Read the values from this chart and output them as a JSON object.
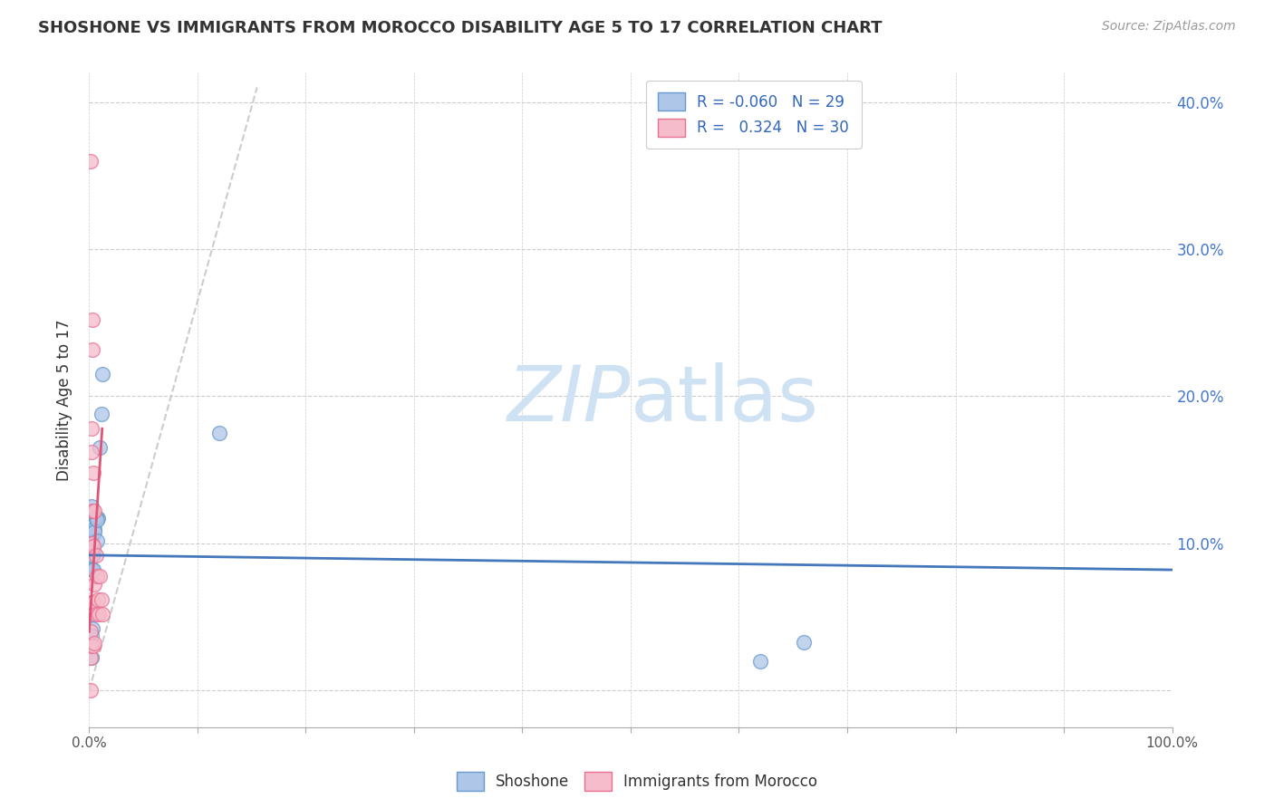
{
  "title": "SHOSHONE VS IMMIGRANTS FROM MOROCCO DISABILITY AGE 5 TO 17 CORRELATION CHART",
  "source": "Source: ZipAtlas.com",
  "ylabel": "Disability Age 5 to 17",
  "background_color": "#ffffff",
  "legend_r_blue": "-0.060",
  "legend_n_blue": "29",
  "legend_r_pink": "0.324",
  "legend_n_pink": "30",
  "xlim": [
    0,
    1.0
  ],
  "ylim": [
    -0.025,
    0.42
  ],
  "yticks": [
    0.0,
    0.1,
    0.2,
    0.3,
    0.4
  ],
  "ytick_labels_right": [
    "",
    "10.0%",
    "20.0%",
    "30.0%",
    "40.0%"
  ],
  "blue_scatter_x": [
    0.002,
    0.004,
    0.003,
    0.002,
    0.004,
    0.005,
    0.006,
    0.005,
    0.007,
    0.008,
    0.01,
    0.006,
    0.007,
    0.003,
    0.002,
    0.012,
    0.011,
    0.12,
    0.003,
    0.002,
    0.002,
    0.003,
    0.003,
    0.002,
    0.003,
    0.62,
    0.66,
    0.004,
    0.003
  ],
  "blue_scatter_y": [
    0.125,
    0.115,
    0.105,
    0.1,
    0.095,
    0.11,
    0.117,
    0.108,
    0.102,
    0.117,
    0.165,
    0.118,
    0.116,
    0.082,
    0.052,
    0.215,
    0.188,
    0.175,
    0.042,
    0.022,
    0.037,
    0.082,
    0.092,
    0.092,
    0.092,
    0.02,
    0.033,
    0.082,
    0.092
  ],
  "pink_scatter_x": [
    0.001,
    0.001,
    0.001,
    0.001,
    0.001,
    0.001,
    0.002,
    0.002,
    0.002,
    0.002,
    0.002,
    0.003,
    0.003,
    0.003,
    0.003,
    0.004,
    0.004,
    0.004,
    0.004,
    0.005,
    0.005,
    0.005,
    0.006,
    0.006,
    0.007,
    0.008,
    0.009,
    0.01,
    0.011,
    0.012
  ],
  "pink_scatter_y": [
    0.36,
    0.0,
    0.055,
    0.04,
    0.03,
    0.022,
    0.178,
    0.162,
    0.1,
    0.06,
    0.03,
    0.252,
    0.232,
    0.122,
    0.06,
    0.148,
    0.098,
    0.06,
    0.03,
    0.122,
    0.072,
    0.032,
    0.092,
    0.052,
    0.078,
    0.062,
    0.052,
    0.078,
    0.062,
    0.052
  ],
  "blue_color": "#aec6e8",
  "blue_edge_color": "#6699cc",
  "pink_color": "#f5bccb",
  "pink_edge_color": "#e87090",
  "blue_line_color": "#4477bb",
  "pink_line_color": "#e05575",
  "diagonal_color": "#cccccc",
  "watermark_color": "#cfe2f3",
  "scatter_size": 130,
  "scatter_alpha": 0.75,
  "blue_line_x": [
    0.0,
    1.0
  ],
  "blue_line_y": [
    0.092,
    0.082
  ],
  "pink_line_x": [
    0.0,
    0.012
  ],
  "pink_line_y": [
    0.04,
    0.178
  ],
  "diag_line_x": [
    0.0,
    0.155
  ],
  "diag_line_y": [
    0.0,
    0.41
  ]
}
